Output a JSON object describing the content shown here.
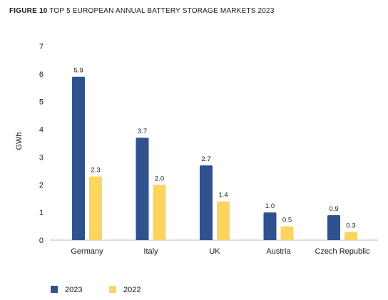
{
  "figure": {
    "number": "FIGURE 10",
    "caption": "TOP 5 EUROPEAN ANNUAL BATTERY STORAGE MARKETS 2023"
  },
  "colors": {
    "s2023": "#2f528f",
    "s2022": "#fcd55f",
    "axis": "#bbbbbb"
  },
  "chart_data": {
    "type": "bar",
    "title": "FIGURE 10 TOP 5 EUROPEAN ANNUAL BATTERY STORAGE MARKETS 2023",
    "xlabel": "",
    "ylabel": "GWh",
    "ylim": [
      0,
      7
    ],
    "yticks": [
      "0",
      "1",
      "2",
      "3",
      "4",
      "5",
      "6",
      "7"
    ],
    "grid": false,
    "legend": "bottom-left",
    "categories": [
      "Germany",
      "Italy",
      "UK",
      "Austria",
      "Czech Republic"
    ],
    "series": [
      {
        "name": "2023",
        "values": [
          5.9,
          3.7,
          2.7,
          1.0,
          0.9
        ],
        "labels": [
          "5.9",
          "3.7",
          "2.7",
          "1.0",
          "0.9"
        ]
      },
      {
        "name": "2022",
        "values": [
          2.3,
          2.0,
          1.4,
          0.5,
          0.3
        ],
        "labels": [
          "2.3",
          "2.0",
          "1.4",
          "0.5",
          "0.3"
        ]
      }
    ]
  }
}
